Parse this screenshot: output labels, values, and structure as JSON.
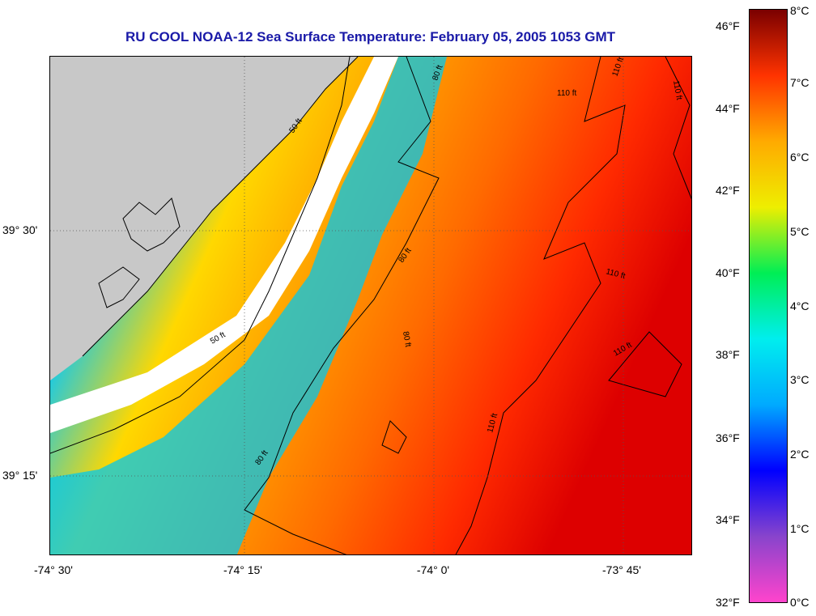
{
  "title": "RU COOL  NOAA-12  Sea Surface Temperature:  February 05, 2005 1053 GMT",
  "x_axis_labels": [
    "-74° 30'",
    "-74° 15'",
    "-74° 0'",
    "-73° 45'"
  ],
  "y_axis_labels": [
    "39° 30'",
    "39° 15'"
  ],
  "contour_labels": [
    "50 ft",
    "50 ft",
    "80 ft",
    "80 ft",
    "80 ft",
    "80 ft",
    "110 ft",
    "110 ft",
    "110 ft",
    "110 ft",
    "110 ft",
    "110 ft"
  ],
  "colorbar": {
    "fahrenheit_labels": [
      "46°F",
      "44°F",
      "42°F",
      "40°F",
      "38°F",
      "36°F",
      "34°F",
      "32°F"
    ],
    "celsius_labels": [
      "8°C",
      "7°C",
      "6°C",
      "5°C",
      "4°C",
      "3°C",
      "2°C",
      "1°C",
      "0°C"
    ],
    "gradient_stops": [
      "#ff44cc",
      "#8844cc",
      "#0000ff",
      "#00aaff",
      "#00eeee",
      "#00ee55",
      "#eeee00",
      "#ffaa00",
      "#ff3300",
      "#7a0000"
    ]
  },
  "colors": {
    "title": "#1a1aa8",
    "land": "#c8c8c8",
    "no_data": "#ffffff",
    "gridline": "#555555",
    "contour": "#000000"
  }
}
